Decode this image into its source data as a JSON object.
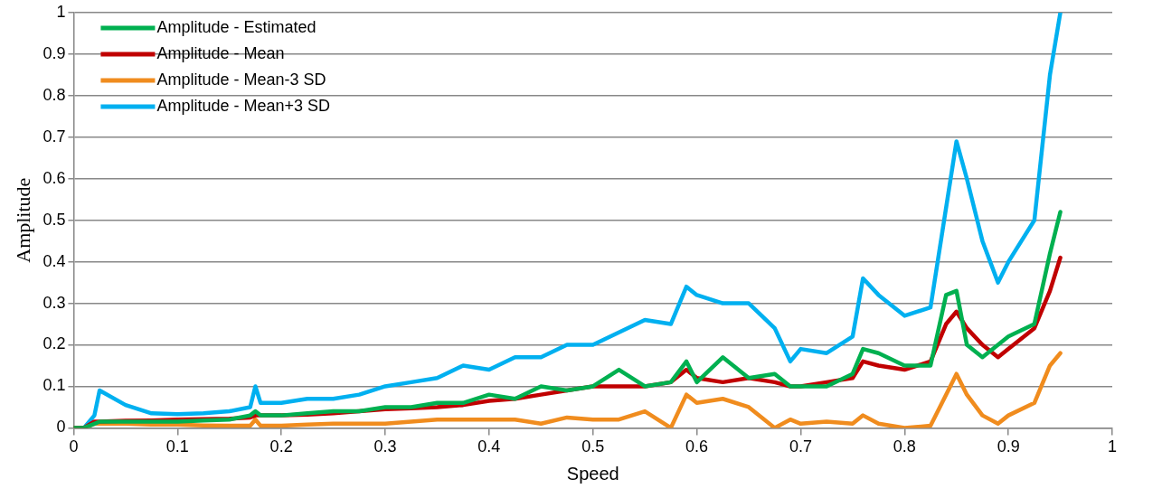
{
  "chart_data": {
    "type": "line",
    "xlabel": "Speed",
    "ylabel": "Amplitude",
    "legend": "top left",
    "grid": "y",
    "marker": "none",
    "line_style": "solid",
    "xlim": [
      0,
      1
    ],
    "xticks": [
      0,
      0.1,
      0.2,
      0.3,
      0.4,
      0.5,
      0.6,
      0.7,
      0.8,
      0.9,
      1
    ],
    "ylim": [
      0,
      1
    ],
    "yticks": [
      0,
      0.1,
      0.2,
      0.3,
      0.4,
      0.5,
      0.6,
      0.7,
      0.8,
      0.9,
      1
    ],
    "x": [
      0,
      0.01,
      0.02,
      0.025,
      0.05,
      0.075,
      0.1,
      0.125,
      0.15,
      0.17,
      0.175,
      0.18,
      0.2,
      0.225,
      0.25,
      0.275,
      0.3,
      0.325,
      0.35,
      0.375,
      0.4,
      0.425,
      0.45,
      0.475,
      0.5,
      0.525,
      0.55,
      0.575,
      0.59,
      0.6,
      0.625,
      0.65,
      0.675,
      0.69,
      0.7,
      0.725,
      0.75,
      0.76,
      0.775,
      0.8,
      0.825,
      0.84,
      0.85,
      0.86,
      0.875,
      0.89,
      0.9,
      0.925,
      0.94,
      0.95
    ],
    "series": [
      {
        "name": "Amplitude - Estimated",
        "color": "#00b050",
        "values": [
          0,
          0,
          0.01,
          0.015,
          0.015,
          0.015,
          0.015,
          0.018,
          0.02,
          0.03,
          0.04,
          0.03,
          0.03,
          0.035,
          0.04,
          0.04,
          0.05,
          0.05,
          0.06,
          0.06,
          0.08,
          0.07,
          0.1,
          0.09,
          0.1,
          0.14,
          0.1,
          0.11,
          0.16,
          0.11,
          0.17,
          0.12,
          0.13,
          0.1,
          0.1,
          0.1,
          0.13,
          0.19,
          0.18,
          0.15,
          0.15,
          0.32,
          0.33,
          0.2,
          0.17,
          0.2,
          0.22,
          0.25,
          0.42,
          0.52
        ]
      },
      {
        "name": "Amplitude - Mean",
        "color": "#c00000",
        "values": [
          0,
          0,
          0.015,
          0.015,
          0.017,
          0.018,
          0.02,
          0.021,
          0.022,
          0.025,
          0.03,
          0.03,
          0.03,
          0.032,
          0.035,
          0.04,
          0.045,
          0.047,
          0.05,
          0.055,
          0.065,
          0.07,
          0.08,
          0.09,
          0.1,
          0.1,
          0.1,
          0.11,
          0.14,
          0.12,
          0.11,
          0.12,
          0.11,
          0.1,
          0.1,
          0.11,
          0.12,
          0.16,
          0.15,
          0.14,
          0.16,
          0.25,
          0.28,
          0.24,
          0.2,
          0.17,
          0.19,
          0.24,
          0.33,
          0.41
        ]
      },
      {
        "name": "Amplitude - Mean-3 SD",
        "color": "#f08c1e",
        "values": [
          0,
          0,
          0.01,
          0.01,
          0.01,
          0.008,
          0.008,
          0.006,
          0.005,
          0.005,
          0.02,
          0.005,
          0.005,
          0.008,
          0.01,
          0.01,
          0.01,
          0.015,
          0.02,
          0.02,
          0.02,
          0.02,
          0.01,
          0.025,
          0.02,
          0.02,
          0.04,
          0,
          0.08,
          0.06,
          0.07,
          0.05,
          0,
          0.02,
          0.01,
          0.015,
          0.01,
          0.03,
          0.01,
          0,
          0.005,
          0.08,
          0.13,
          0.08,
          0.03,
          0.01,
          0.03,
          0.06,
          0.15,
          0.18
        ]
      },
      {
        "name": "Amplitude - Mean+3 SD",
        "color": "#00b0f0",
        "values": [
          0,
          0,
          0.03,
          0.09,
          0.055,
          0.035,
          0.033,
          0.035,
          0.04,
          0.05,
          0.1,
          0.06,
          0.06,
          0.07,
          0.07,
          0.08,
          0.1,
          0.11,
          0.12,
          0.15,
          0.14,
          0.17,
          0.17,
          0.2,
          0.2,
          0.23,
          0.26,
          0.25,
          0.34,
          0.32,
          0.3,
          0.3,
          0.24,
          0.16,
          0.19,
          0.18,
          0.22,
          0.36,
          0.32,
          0.27,
          0.29,
          0.53,
          0.69,
          0.6,
          0.45,
          0.35,
          0.4,
          0.5,
          0.85,
          1.0
        ]
      }
    ]
  }
}
